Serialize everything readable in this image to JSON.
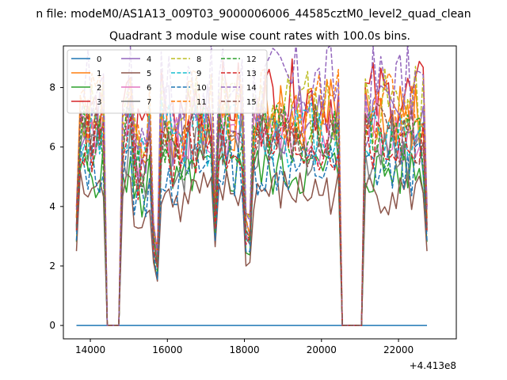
{
  "chart_data": {
    "type": "line",
    "suptitle": "n file: modeM0/AS1A13_009T03_9000006006_44585cztM0_level2_quad_clean",
    "title": "Quadrant 3 module wise count rates with 100.0s bins.",
    "xlabel": "",
    "ylabel": "",
    "x_offset_label": "+4.413e8",
    "xlim": [
      13300,
      23500
    ],
    "ylim": [
      -0.45,
      9.4
    ],
    "x_ticks": [
      14000,
      16000,
      18000,
      20000,
      22000
    ],
    "y_ticks": [
      0,
      2,
      4,
      6,
      8
    ],
    "x_tick_labels": [
      "14000",
      "16000",
      "18000",
      "20000",
      "22000"
    ],
    "y_tick_labels": [
      "0",
      "2",
      "4",
      "6",
      "8"
    ],
    "grid": false,
    "legend": {
      "placement": "top-left",
      "columns": 4
    },
    "x": [
      13640,
      13740,
      13840,
      13940,
      14040,
      14140,
      14240,
      14340,
      14440,
      14540,
      14640,
      14740,
      14840,
      14940,
      15040,
      15140,
      15240,
      15340,
      15440,
      15540,
      15640,
      15740,
      15840,
      15940,
      16040,
      16140,
      16240,
      16340,
      16440,
      16540,
      16640,
      16740,
      16840,
      16940,
      17040,
      17140,
      17240,
      17340,
      17440,
      17540,
      17640,
      17740,
      17840,
      17940,
      18040,
      18140,
      18240,
      18340,
      18440,
      18540,
      18640,
      18740,
      18840,
      18940,
      19040,
      19140,
      19240,
      19340,
      19440,
      19540,
      19640,
      19740,
      19840,
      19940,
      20040,
      20140,
      20240,
      20340,
      20440,
      20540,
      20640,
      20740,
      20840,
      20940,
      21040,
      21140,
      21240,
      21340,
      21440,
      21540,
      21640,
      21740,
      21840,
      21940,
      22040,
      22140,
      22240,
      22340,
      22440,
      22540,
      22640,
      22740
    ],
    "segment_x": [
      [
        13640,
        14340
      ],
      [
        14840,
        20440
      ],
      [
        21140,
        22740
      ]
    ],
    "series": [
      {
        "name": "0",
        "color": "#1f77b4",
        "dash": "solid",
        "values": [
          0,
          0,
          0,
          0,
          0,
          0,
          0,
          0,
          0,
          0,
          0,
          0,
          0,
          0,
          0,
          0,
          0,
          0,
          0,
          0,
          0,
          0,
          0,
          0,
          0,
          0,
          0,
          0,
          0,
          0,
          0,
          0,
          0,
          0,
          0,
          0,
          0,
          0,
          0,
          0,
          0,
          0,
          0,
          0,
          0,
          0,
          0,
          0,
          0,
          0,
          0,
          0,
          0,
          0,
          0,
          0,
          0,
          0,
          0,
          0,
          0,
          0,
          0,
          0,
          0,
          0,
          0,
          0,
          0,
          0,
          0,
          0,
          0,
          0,
          0,
          0,
          0,
          0,
          0,
          0,
          0,
          0,
          0,
          0,
          0,
          0,
          0,
          0,
          0,
          0,
          0,
          0
        ]
      },
      {
        "name": "1",
        "color": "#ff7f0e",
        "dash": "solid",
        "base": 7.1,
        "low_scale": 0.68
      },
      {
        "name": "2",
        "color": "#2ca02c",
        "dash": "solid",
        "base": 5.2,
        "low_scale": 0.72
      },
      {
        "name": "3",
        "color": "#d62728",
        "dash": "solid",
        "base": 7.6,
        "low_scale": 0.7
      },
      {
        "name": "4",
        "color": "#9467bd",
        "dash": "solid",
        "base": 6.9,
        "low_scale": 0.66
      },
      {
        "name": "5",
        "color": "#8c564b",
        "dash": "solid",
        "base": 4.5,
        "low_scale": 0.74
      },
      {
        "name": "6",
        "color": "#e377c2",
        "dash": "solid",
        "base": 6.6,
        "low_scale": 0.68
      },
      {
        "name": "7",
        "color": "#7f7f7f",
        "dash": "solid",
        "base": 6.0,
        "low_scale": 0.7
      },
      {
        "name": "8",
        "color": "#bcbd22",
        "dash": "dashed",
        "base": 7.4,
        "low_scale": 0.66
      },
      {
        "name": "9",
        "color": "#17becf",
        "dash": "dashed",
        "base": 6.5,
        "low_scale": 0.69
      },
      {
        "name": "10",
        "color": "#1f77b4",
        "dash": "dashed",
        "base": 5.3,
        "low_scale": 0.72
      },
      {
        "name": "11",
        "color": "#ff7f0e",
        "dash": "dashed",
        "base": 7.3,
        "low_scale": 0.66
      },
      {
        "name": "12",
        "color": "#2ca02c",
        "dash": "dashed",
        "base": 6.3,
        "low_scale": 0.7
      },
      {
        "name": "13",
        "color": "#d62728",
        "dash": "dashed",
        "base": 6.1,
        "low_scale": 0.7
      },
      {
        "name": "14",
        "color": "#9467bd",
        "dash": "dashed",
        "base": 8.1,
        "low_scale": 0.64
      },
      {
        "name": "15",
        "color": "#8c564b",
        "dash": "dashed",
        "base": 6.4,
        "low_scale": 0.68
      }
    ],
    "shape": {
      "dips_x": [
        15640,
        15740,
        17240,
        18040,
        18140
      ],
      "dip_factors": [
        0.45,
        0.32,
        0.55,
        0.48,
        0.46
      ],
      "edge_x": [
        13640,
        14240,
        14340,
        14840,
        20440,
        21140,
        22640,
        22740
      ]
    }
  }
}
